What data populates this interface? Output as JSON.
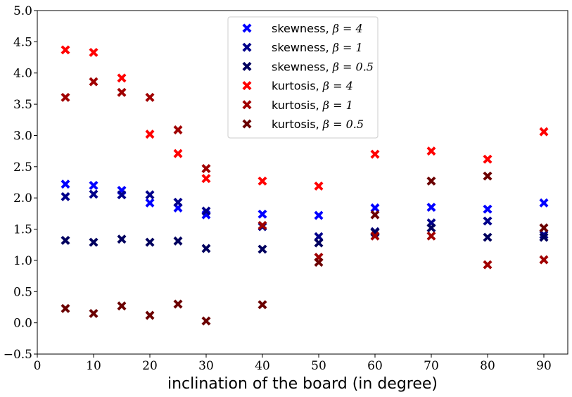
{
  "chart_data": {
    "type": "scatter",
    "title": "",
    "xlabel": "inclination of the board (in degree)",
    "ylabel": "",
    "xlim": [
      0,
      94.25
    ],
    "ylim": [
      -0.5,
      5.0
    ],
    "xticks": [
      0,
      10,
      20,
      30,
      40,
      50,
      60,
      70,
      80,
      90
    ],
    "yticks": [
      -0.5,
      0.0,
      0.5,
      1.0,
      1.5,
      2.0,
      2.5,
      3.0,
      3.5,
      4.0,
      4.5,
      5.0
    ],
    "grid": false,
    "legend_position": "top-center",
    "marker": "X",
    "series": [
      {
        "name": "skewness, β = 4",
        "label_text": "skewness,",
        "label_math": "β = 4",
        "color": "#0000ff",
        "points": [
          [
            5,
            2.22
          ],
          [
            10,
            2.2
          ],
          [
            15,
            2.12
          ],
          [
            20,
            1.92
          ],
          [
            25,
            1.84
          ],
          [
            30,
            1.73
          ],
          [
            40,
            1.74
          ],
          [
            50,
            1.72
          ],
          [
            60,
            1.84
          ],
          [
            70,
            1.85
          ],
          [
            80,
            1.82
          ],
          [
            90,
            1.92
          ]
        ]
      },
      {
        "name": "skewness, β = 1",
        "label_text": "skewness,",
        "label_math": "β = 1",
        "color": "#00008b",
        "points": [
          [
            5,
            2.02
          ],
          [
            10,
            2.06
          ],
          [
            15,
            2.05
          ],
          [
            20,
            2.05
          ],
          [
            25,
            1.93
          ],
          [
            30,
            1.79
          ],
          [
            40,
            1.54
          ],
          [
            50,
            1.38
          ],
          [
            60,
            1.46
          ],
          [
            70,
            1.6
          ],
          [
            80,
            1.63
          ],
          [
            90,
            1.41
          ]
        ]
      },
      {
        "name": "skewness, β = 0.5",
        "label_text": "skewness,",
        "label_math": "β = 0.5",
        "color": "#00005e",
        "points": [
          [
            5,
            1.32
          ],
          [
            10,
            1.29
          ],
          [
            15,
            1.34
          ],
          [
            20,
            1.29
          ],
          [
            25,
            1.31
          ],
          [
            30,
            1.19
          ],
          [
            40,
            1.18
          ],
          [
            50,
            1.28
          ],
          [
            60,
            1.45
          ],
          [
            70,
            1.52
          ],
          [
            80,
            1.37
          ],
          [
            90,
            1.37
          ]
        ]
      },
      {
        "name": "kurtosis, β = 4",
        "label_text": "kurtosis,",
        "label_math": "β = 4",
        "color": "#ff0000",
        "points": [
          [
            5,
            4.37
          ],
          [
            10,
            4.33
          ],
          [
            15,
            3.92
          ],
          [
            20,
            3.02
          ],
          [
            25,
            2.71
          ],
          [
            30,
            2.31
          ],
          [
            40,
            2.27
          ],
          [
            50,
            2.19
          ],
          [
            60,
            2.7
          ],
          [
            70,
            2.75
          ],
          [
            80,
            2.62
          ],
          [
            90,
            3.06
          ]
        ]
      },
      {
        "name": "kurtosis, β = 1",
        "label_text": "kurtosis,",
        "label_math": "β = 1",
        "color": "#a00000",
        "points": [
          [
            5,
            3.61
          ],
          [
            10,
            3.86
          ],
          [
            15,
            3.69
          ],
          [
            20,
            3.61
          ],
          [
            25,
            3.09
          ],
          [
            30,
            2.47
          ],
          [
            40,
            1.56
          ],
          [
            50,
            1.05
          ],
          [
            60,
            1.39
          ],
          [
            70,
            1.39
          ],
          [
            80,
            0.93
          ],
          [
            90,
            1.01
          ]
        ]
      },
      {
        "name": "kurtosis, β = 0.5",
        "label_text": "kurtosis,",
        "label_math": "β = 0.5",
        "color": "#6b0000",
        "points": [
          [
            5,
            0.23
          ],
          [
            10,
            0.15
          ],
          [
            15,
            0.27
          ],
          [
            20,
            0.12
          ],
          [
            25,
            0.3
          ],
          [
            30,
            0.03
          ],
          [
            40,
            0.29
          ],
          [
            50,
            0.97
          ],
          [
            60,
            1.73
          ],
          [
            70,
            2.27
          ],
          [
            80,
            2.35
          ],
          [
            90,
            1.52
          ]
        ]
      }
    ]
  }
}
